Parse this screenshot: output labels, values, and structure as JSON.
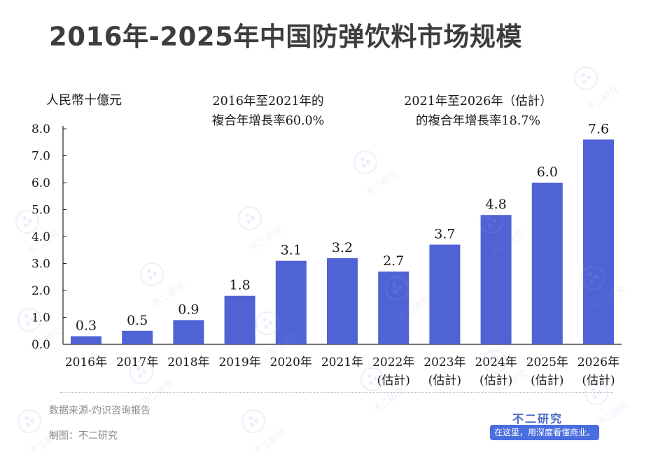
{
  "page": {
    "title": "2016年-2025年中国防弹饮料市场规模",
    "source": "数据来源-灼识咨询报告",
    "credit": "制图：不二研究",
    "brand": {
      "name": "不二研究",
      "slogan": "在这里，用深度看懂商业。"
    },
    "watermark_text": "不二研究"
  },
  "chart_data": {
    "type": "bar",
    "unit_label": "人民幣十億元",
    "annotations": [
      [
        "2016年至2021年的",
        "複合年增長率60.0%"
      ],
      [
        "2021年至2026年（估計）",
        "的複合年增長率18.7%"
      ]
    ],
    "categories": [
      [
        "2016年"
      ],
      [
        "2017年"
      ],
      [
        "2018年"
      ],
      [
        "2019年"
      ],
      [
        "2020年"
      ],
      [
        "2021年"
      ],
      [
        "2022年",
        "(估計)"
      ],
      [
        "2023年",
        "(估計)"
      ],
      [
        "2024年",
        "(估計)"
      ],
      [
        "2025年",
        "(估計)"
      ],
      [
        "2026年",
        "(估計)"
      ]
    ],
    "values": [
      0.3,
      0.5,
      0.9,
      1.8,
      3.1,
      3.2,
      2.7,
      3.7,
      4.8,
      6.0,
      7.6
    ],
    "data_labels": [
      "0.3",
      "0.5",
      "0.9",
      "1.8",
      "3.1",
      "3.2",
      "2.7",
      "3.7",
      "4.8",
      "6.0",
      "7.6"
    ],
    "yticks": [
      "0.0",
      "1.0",
      "2.0",
      "3.0",
      "4.0",
      "5.0",
      "6.0",
      "7.0",
      "8.0"
    ],
    "ylim": [
      0,
      8
    ],
    "bar_color": "#4f63d4",
    "grid": false
  }
}
